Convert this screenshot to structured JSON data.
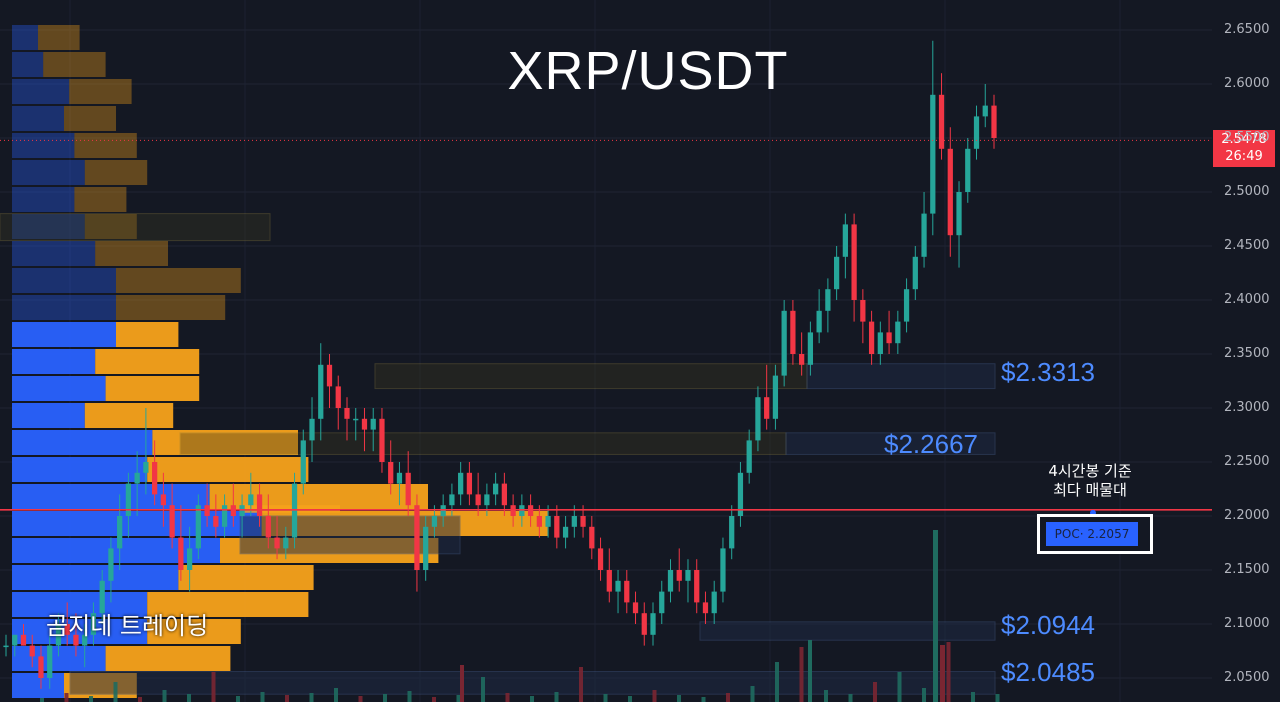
{
  "header": {
    "title": "XRP/USDT"
  },
  "watermark": {
    "brand": "곰지네 트레이딩"
  },
  "annotation": {
    "line1": "4시간봉 기준",
    "line2": "최다 매물대",
    "poc_label": "POC· 2.2057"
  },
  "levels": [
    "$2.3313",
    "$2.2667",
    "$2.0944",
    "$2.0485"
  ],
  "current_price": {
    "value": "2.5478",
    "countdown": "26:49"
  },
  "colors": {
    "up": "#26a69a",
    "down": "#f23645",
    "poc_line": "#f23645",
    "volume_up": "#2962ff",
    "volume_down": "#f7a21b",
    "level_text": "#4d8bff"
  },
  "chart_data": {
    "type": "candlestick",
    "title": "XRP/USDT",
    "y_axis": {
      "range": [
        2.035,
        2.665
      ],
      "ticks": [
        "2.6500",
        "2.6000",
        "2.5500",
        "2.5000",
        "2.4500",
        "2.4000",
        "2.3500",
        "2.3000",
        "2.2500",
        "2.2000",
        "2.1500",
        "2.1000",
        "2.0500"
      ]
    },
    "poc": 2.2057,
    "last_price": 2.5478,
    "support_resistance": [
      2.3313,
      2.2667,
      2.0944,
      2.0485
    ],
    "candles": [
      [
        2.08,
        2.09,
        2.07,
        2.08
      ],
      [
        2.08,
        2.09,
        2.07,
        2.09
      ],
      [
        2.09,
        2.1,
        2.08,
        2.08
      ],
      [
        2.08,
        2.09,
        2.06,
        2.07
      ],
      [
        2.07,
        2.08,
        2.04,
        2.05
      ],
      [
        2.05,
        2.09,
        2.04,
        2.08
      ],
      [
        2.08,
        2.11,
        2.07,
        2.1
      ],
      [
        2.1,
        2.12,
        2.08,
        2.09
      ],
      [
        2.09,
        2.11,
        2.07,
        2.08
      ],
      [
        2.08,
        2.1,
        2.06,
        2.09
      ],
      [
        2.09,
        2.12,
        2.08,
        2.11
      ],
      [
        2.11,
        2.15,
        2.1,
        2.14
      ],
      [
        2.14,
        2.18,
        2.12,
        2.17
      ],
      [
        2.17,
        2.22,
        2.15,
        2.2
      ],
      [
        2.2,
        2.24,
        2.18,
        2.23
      ],
      [
        2.23,
        2.26,
        2.2,
        2.24
      ],
      [
        2.24,
        2.3,
        2.22,
        2.25
      ],
      [
        2.25,
        2.27,
        2.21,
        2.22
      ],
      [
        2.22,
        2.24,
        2.19,
        2.21
      ],
      [
        2.21,
        2.23,
        2.17,
        2.18
      ],
      [
        2.18,
        2.21,
        2.14,
        2.15
      ],
      [
        2.15,
        2.19,
        2.13,
        2.17
      ],
      [
        2.17,
        2.22,
        2.16,
        2.21
      ],
      [
        2.21,
        2.23,
        2.19,
        2.2
      ],
      [
        2.2,
        2.22,
        2.18,
        2.19
      ],
      [
        2.19,
        2.22,
        2.18,
        2.21
      ],
      [
        2.21,
        2.23,
        2.19,
        2.2
      ],
      [
        2.2,
        2.22,
        2.18,
        2.21
      ],
      [
        2.21,
        2.24,
        2.2,
        2.22
      ],
      [
        2.22,
        2.23,
        2.19,
        2.2
      ],
      [
        2.2,
        2.22,
        2.17,
        2.18
      ],
      [
        2.18,
        2.2,
        2.16,
        2.17
      ],
      [
        2.17,
        2.19,
        2.16,
        2.18
      ],
      [
        2.18,
        2.24,
        2.17,
        2.23
      ],
      [
        2.23,
        2.28,
        2.22,
        2.27
      ],
      [
        2.27,
        2.31,
        2.25,
        2.29
      ],
      [
        2.29,
        2.36,
        2.27,
        2.34
      ],
      [
        2.34,
        2.35,
        2.3,
        2.32
      ],
      [
        2.32,
        2.33,
        2.28,
        2.3
      ],
      [
        2.3,
        2.31,
        2.27,
        2.29
      ],
      [
        2.29,
        2.3,
        2.27,
        2.29
      ],
      [
        2.29,
        2.3,
        2.26,
        2.28
      ],
      [
        2.28,
        2.3,
        2.26,
        2.29
      ],
      [
        2.29,
        2.3,
        2.24,
        2.25
      ],
      [
        2.25,
        2.27,
        2.22,
        2.23
      ],
      [
        2.23,
        2.25,
        2.21,
        2.24
      ],
      [
        2.24,
        2.26,
        2.2,
        2.21
      ],
      [
        2.21,
        2.22,
        2.13,
        2.15
      ],
      [
        2.15,
        2.2,
        2.14,
        2.19
      ],
      [
        2.19,
        2.21,
        2.18,
        2.2
      ],
      [
        2.2,
        2.22,
        2.19,
        2.21
      ],
      [
        2.21,
        2.23,
        2.2,
        2.22
      ],
      [
        2.22,
        2.25,
        2.21,
        2.24
      ],
      [
        2.24,
        2.25,
        2.21,
        2.22
      ],
      [
        2.22,
        2.24,
        2.2,
        2.21
      ],
      [
        2.21,
        2.23,
        2.2,
        2.22
      ],
      [
        2.22,
        2.24,
        2.21,
        2.23
      ],
      [
        2.23,
        2.24,
        2.2,
        2.21
      ],
      [
        2.21,
        2.22,
        2.19,
        2.2
      ],
      [
        2.2,
        2.22,
        2.19,
        2.21
      ],
      [
        2.21,
        2.22,
        2.19,
        2.2
      ],
      [
        2.2,
        2.21,
        2.18,
        2.19
      ],
      [
        2.19,
        2.21,
        2.18,
        2.2
      ],
      [
        2.2,
        2.21,
        2.17,
        2.18
      ],
      [
        2.18,
        2.2,
        2.17,
        2.19
      ],
      [
        2.19,
        2.21,
        2.18,
        2.2
      ],
      [
        2.2,
        2.21,
        2.18,
        2.19
      ],
      [
        2.19,
        2.2,
        2.16,
        2.17
      ],
      [
        2.17,
        2.18,
        2.14,
        2.15
      ],
      [
        2.15,
        2.17,
        2.12,
        2.13
      ],
      [
        2.13,
        2.15,
        2.11,
        2.14
      ],
      [
        2.14,
        2.15,
        2.11,
        2.12
      ],
      [
        2.12,
        2.13,
        2.1,
        2.11
      ],
      [
        2.11,
        2.12,
        2.08,
        2.09
      ],
      [
        2.09,
        2.12,
        2.08,
        2.11
      ],
      [
        2.11,
        2.14,
        2.1,
        2.13
      ],
      [
        2.13,
        2.16,
        2.12,
        2.15
      ],
      [
        2.15,
        2.17,
        2.13,
        2.14
      ],
      [
        2.14,
        2.16,
        2.12,
        2.15
      ],
      [
        2.15,
        2.16,
        2.11,
        2.12
      ],
      [
        2.12,
        2.13,
        2.1,
        2.11
      ],
      [
        2.11,
        2.14,
        2.1,
        2.13
      ],
      [
        2.13,
        2.18,
        2.12,
        2.17
      ],
      [
        2.17,
        2.21,
        2.16,
        2.2
      ],
      [
        2.2,
        2.25,
        2.19,
        2.24
      ],
      [
        2.24,
        2.28,
        2.23,
        2.27
      ],
      [
        2.27,
        2.32,
        2.26,
        2.31
      ],
      [
        2.31,
        2.34,
        2.28,
        2.29
      ],
      [
        2.29,
        2.34,
        2.28,
        2.33
      ],
      [
        2.33,
        2.4,
        2.32,
        2.39
      ],
      [
        2.39,
        2.4,
        2.34,
        2.35
      ],
      [
        2.35,
        2.37,
        2.33,
        2.34
      ],
      [
        2.34,
        2.38,
        2.33,
        2.37
      ],
      [
        2.37,
        2.41,
        2.36,
        2.39
      ],
      [
        2.39,
        2.42,
        2.37,
        2.41
      ],
      [
        2.41,
        2.45,
        2.4,
        2.44
      ],
      [
        2.44,
        2.48,
        2.42,
        2.47
      ],
      [
        2.47,
        2.48,
        2.38,
        2.4
      ],
      [
        2.4,
        2.41,
        2.36,
        2.38
      ],
      [
        2.38,
        2.39,
        2.34,
        2.35
      ],
      [
        2.35,
        2.38,
        2.34,
        2.37
      ],
      [
        2.37,
        2.39,
        2.35,
        2.36
      ],
      [
        2.36,
        2.39,
        2.35,
        2.38
      ],
      [
        2.38,
        2.42,
        2.37,
        2.41
      ],
      [
        2.41,
        2.45,
        2.4,
        2.44
      ],
      [
        2.44,
        2.5,
        2.43,
        2.48
      ],
      [
        2.48,
        2.64,
        2.46,
        2.59
      ],
      [
        2.59,
        2.61,
        2.53,
        2.54
      ],
      [
        2.54,
        2.56,
        2.44,
        2.46
      ],
      [
        2.46,
        2.51,
        2.43,
        2.5
      ],
      [
        2.5,
        2.55,
        2.49,
        2.54
      ],
      [
        2.54,
        2.58,
        2.53,
        2.57
      ],
      [
        2.57,
        2.6,
        2.56,
        2.58
      ],
      [
        2.58,
        2.59,
        2.54,
        2.55
      ]
    ],
    "volume_profile": [
      [
        0.05,
        0.08
      ],
      [
        0.06,
        0.12
      ],
      [
        0.11,
        0.12
      ],
      [
        0.1,
        0.1
      ],
      [
        0.12,
        0.12
      ],
      [
        0.14,
        0.12
      ],
      [
        0.12,
        0.1
      ],
      [
        0.14,
        0.1
      ],
      [
        0.16,
        0.14
      ],
      [
        0.2,
        0.24
      ],
      [
        0.2,
        0.21
      ],
      [
        0.2,
        0.12
      ],
      [
        0.16,
        0.2
      ],
      [
        0.18,
        0.18
      ],
      [
        0.14,
        0.17
      ],
      [
        0.27,
        0.28
      ],
      [
        0.26,
        0.31
      ],
      [
        0.38,
        0.42
      ],
      [
        0.48,
        0.55
      ],
      [
        0.4,
        0.42
      ],
      [
        0.32,
        0.26
      ],
      [
        0.26,
        0.31
      ],
      [
        0.26,
        0.18
      ],
      [
        0.18,
        0.24
      ],
      [
        0.1,
        0.14
      ]
    ]
  }
}
